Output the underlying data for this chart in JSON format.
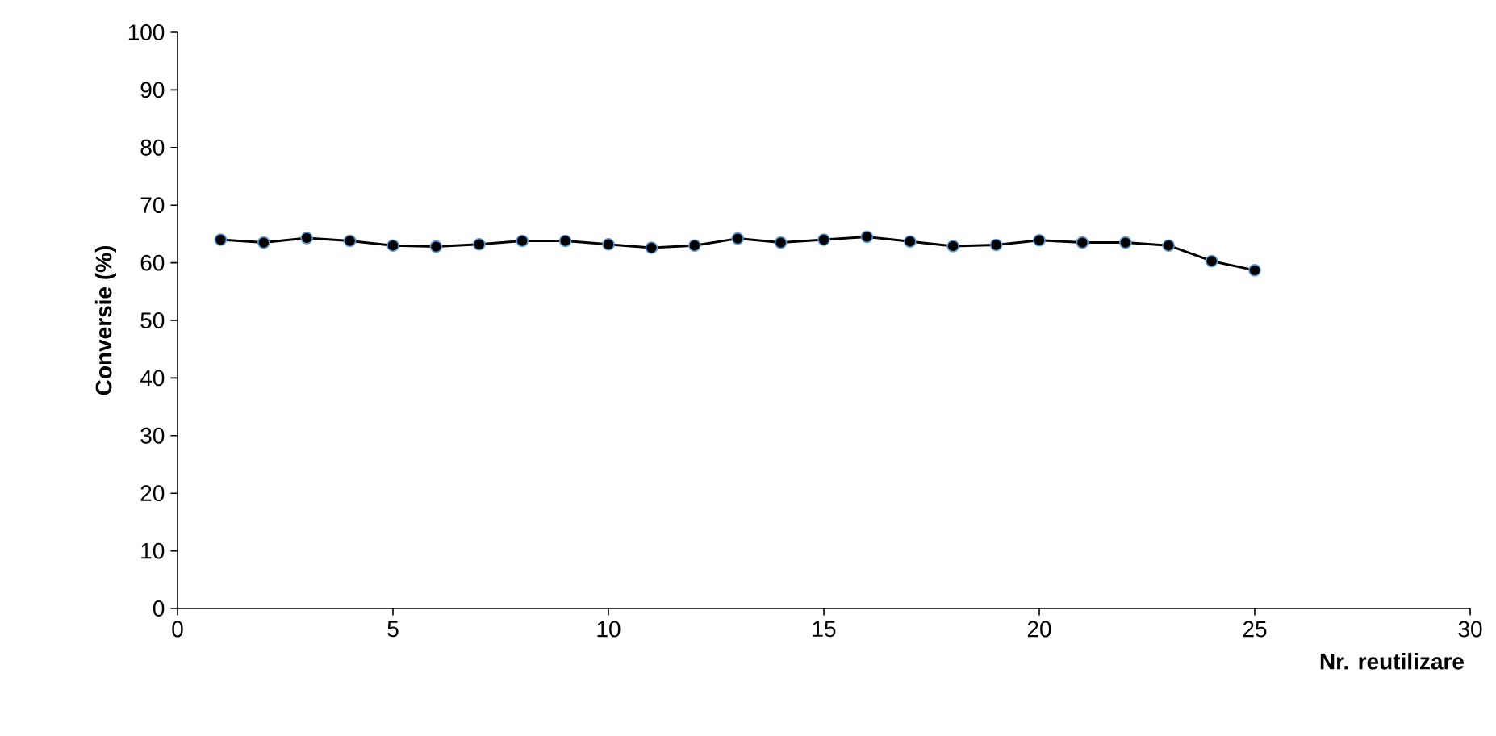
{
  "chart_data": {
    "type": "line",
    "xlabel": "Nr. reutilizare",
    "ylabel": "Conversie (%)",
    "x": [
      1,
      2,
      3,
      4,
      5,
      6,
      7,
      8,
      9,
      10,
      11,
      12,
      13,
      14,
      15,
      16,
      17,
      18,
      19,
      20,
      21,
      22,
      23,
      24,
      25
    ],
    "series": [
      {
        "color": "#000000",
        "values": [
          64,
          63.5,
          64.3,
          63.8,
          63,
          62.8,
          63.2,
          63.8,
          63.8,
          63.2,
          62.6,
          63,
          64.2,
          63.5,
          64,
          64.5,
          63.7,
          62.9,
          63.1,
          63.9,
          63.5,
          63.5,
          63,
          60.3,
          58.7
        ]
      }
    ],
    "xlim": [
      0,
      30
    ],
    "xticks": [
      0,
      5,
      10,
      15,
      20,
      25,
      30
    ],
    "ylim": [
      0,
      100
    ],
    "yticks": [
      0,
      10,
      20,
      30,
      40,
      50,
      60,
      70,
      80,
      90,
      100
    ],
    "marker": "circle",
    "line_style": "solid"
  }
}
